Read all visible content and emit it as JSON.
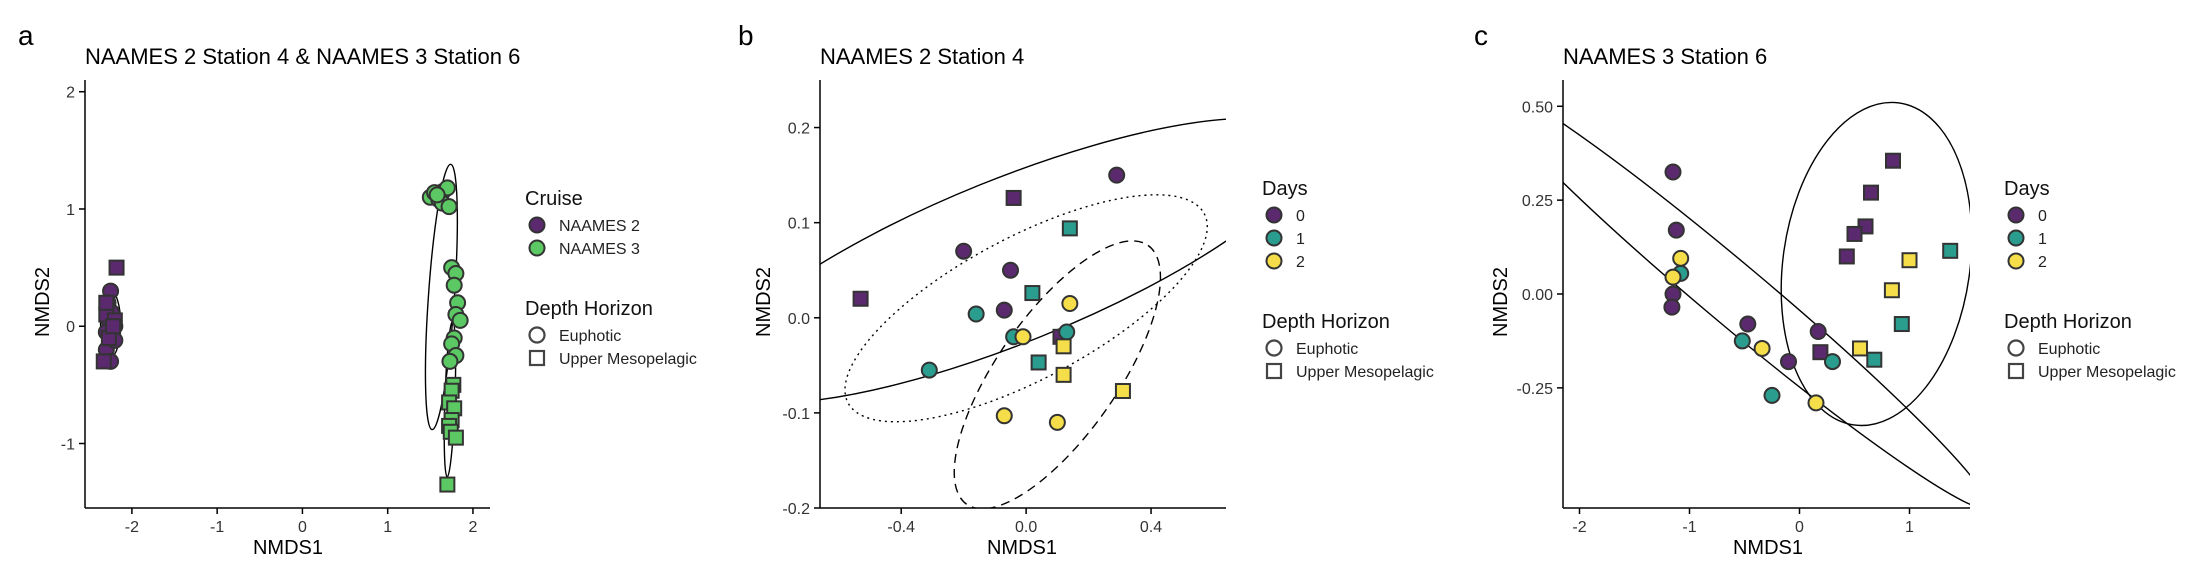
{
  "chart_data": [
    {
      "type": "scatter",
      "panel_label": "a",
      "title": "NAAMES 2 Station 4 & NAAMES 3 Station 6",
      "xlabel": "NMDS1",
      "ylabel": "NMDS2",
      "xlim": [
        -2.55,
        2.2
      ],
      "ylim": [
        -1.55,
        2.1
      ],
      "xticks": [
        -2,
        -1,
        0,
        1,
        2
      ],
      "xtick_labels": [
        "-2",
        "-1",
        "0",
        "1",
        "2"
      ],
      "yticks": [
        -1,
        0,
        1,
        2
      ],
      "ytick_labels": [
        "-1",
        "0",
        "1",
        "2"
      ],
      "grid": false,
      "legend_position": "right",
      "legends": [
        {
          "title": "Cruise",
          "kind": "color",
          "entries": [
            {
              "label": "NAAMES 2",
              "color": "#5B2A6E"
            },
            {
              "label": "NAAMES 3",
              "color": "#5CC863"
            }
          ]
        },
        {
          "title": "Depth Horizon",
          "kind": "shape",
          "entries": [
            {
              "label": "Euphotic",
              "shape": "circle"
            },
            {
              "label": "Upper Mesopelagic",
              "shape": "square"
            }
          ]
        }
      ],
      "ellipses": [
        {
          "cx": 1.63,
          "cy": 0.25,
          "rx": 1.33,
          "ry": 0.13,
          "angle": 86,
          "style": "solid"
        },
        {
          "cx": 1.73,
          "cy": -0.62,
          "rx": 0.78,
          "ry": 0.05,
          "angle": 88,
          "style": "solid"
        },
        {
          "cx": -2.25,
          "cy": 0.02,
          "rx": 0.33,
          "ry": 0.1,
          "angle": 90,
          "style": "solid"
        }
      ],
      "series": [
        {
          "name": "NAAMES 2",
          "color": "#5B2A6E",
          "points": [
            {
              "x": -2.27,
              "y": 0.05,
              "shape": "circle"
            },
            {
              "x": -2.25,
              "y": 0.3,
              "shape": "circle"
            },
            {
              "x": -2.3,
              "y": -0.05,
              "shape": "circle"
            },
            {
              "x": -2.22,
              "y": -0.1,
              "shape": "circle"
            },
            {
              "x": -2.2,
              "y": 0.0,
              "shape": "circle"
            },
            {
              "x": -2.3,
              "y": -0.2,
              "shape": "circle"
            },
            {
              "x": -2.25,
              "y": -0.3,
              "shape": "circle"
            },
            {
              "x": -2.28,
              "y": 0.2,
              "shape": "circle"
            },
            {
              "x": -2.2,
              "y": -0.12,
              "shape": "circle"
            },
            {
              "x": -2.24,
              "y": 0.12,
              "shape": "circle"
            },
            {
              "x": -2.18,
              "y": 0.5,
              "shape": "square"
            },
            {
              "x": -2.3,
              "y": 0.1,
              "shape": "square"
            },
            {
              "x": -2.27,
              "y": -0.1,
              "shape": "square"
            },
            {
              "x": -2.33,
              "y": -0.3,
              "shape": "square"
            },
            {
              "x": -2.2,
              "y": 0.05,
              "shape": "square"
            },
            {
              "x": -2.22,
              "y": 0.0,
              "shape": "square"
            },
            {
              "x": -2.3,
              "y": 0.2,
              "shape": "square"
            }
          ]
        },
        {
          "name": "NAAMES 3",
          "color": "#5CC863",
          "points": [
            {
              "x": 1.5,
              "y": 1.1,
              "shape": "circle"
            },
            {
              "x": 1.55,
              "y": 1.14,
              "shape": "circle"
            },
            {
              "x": 1.6,
              "y": 1.08,
              "shape": "circle"
            },
            {
              "x": 1.65,
              "y": 1.15,
              "shape": "circle"
            },
            {
              "x": 1.7,
              "y": 1.18,
              "shape": "circle"
            },
            {
              "x": 1.64,
              "y": 1.05,
              "shape": "circle"
            },
            {
              "x": 1.72,
              "y": 1.02,
              "shape": "circle"
            },
            {
              "x": 1.58,
              "y": 1.12,
              "shape": "circle"
            },
            {
              "x": 1.75,
              "y": 0.5,
              "shape": "circle"
            },
            {
              "x": 1.8,
              "y": 0.45,
              "shape": "circle"
            },
            {
              "x": 1.78,
              "y": 0.35,
              "shape": "circle"
            },
            {
              "x": 1.82,
              "y": 0.2,
              "shape": "circle"
            },
            {
              "x": 1.8,
              "y": 0.1,
              "shape": "circle"
            },
            {
              "x": 1.85,
              "y": 0.05,
              "shape": "circle"
            },
            {
              "x": 1.78,
              "y": -0.1,
              "shape": "circle"
            },
            {
              "x": 1.75,
              "y": -0.15,
              "shape": "circle"
            },
            {
              "x": 1.8,
              "y": -0.25,
              "shape": "circle"
            },
            {
              "x": 1.73,
              "y": -0.3,
              "shape": "circle"
            },
            {
              "x": 1.77,
              "y": -0.5,
              "shape": "square"
            },
            {
              "x": 1.75,
              "y": -0.55,
              "shape": "square"
            },
            {
              "x": 1.72,
              "y": -0.65,
              "shape": "square"
            },
            {
              "x": 1.78,
              "y": -0.7,
              "shape": "square"
            },
            {
              "x": 1.75,
              "y": -0.8,
              "shape": "square"
            },
            {
              "x": 1.72,
              "y": -0.85,
              "shape": "square"
            },
            {
              "x": 1.74,
              "y": -0.9,
              "shape": "square"
            },
            {
              "x": 1.8,
              "y": -0.95,
              "shape": "square"
            },
            {
              "x": 1.7,
              "y": -1.35,
              "shape": "square"
            }
          ]
        }
      ]
    },
    {
      "type": "scatter",
      "panel_label": "b",
      "title": "NAAMES 2 Station 4",
      "xlabel": "NMDS1",
      "ylabel": "NMDS2",
      "xlim": [
        -0.66,
        0.64
      ],
      "ylim": [
        -0.2,
        0.25
      ],
      "xticks": [
        -0.4,
        0.0,
        0.4
      ],
      "xtick_labels": [
        "-0.4",
        "0.0",
        "0.4"
      ],
      "yticks": [
        -0.2,
        -0.1,
        0.0,
        0.1,
        0.2
      ],
      "ytick_labels": [
        "-0.2",
        "-0.1",
        "0.0",
        "0.1",
        "0.2"
      ],
      "grid": false,
      "legend_position": "right",
      "legends": [
        {
          "title": "Days",
          "kind": "color",
          "entries": [
            {
              "label": "0",
              "color": "#5B2A6E"
            },
            {
              "label": "1",
              "color": "#2A9D8F"
            },
            {
              "label": "2",
              "color": "#F5DE4A"
            }
          ]
        },
        {
          "title": "Depth Horizon",
          "kind": "shape",
          "entries": [
            {
              "label": "Euphotic",
              "shape": "circle"
            },
            {
              "label": "Upper Mesopelagic",
              "shape": "square"
            }
          ]
        }
      ],
      "ellipses": [
        {
          "cx": -0.05,
          "cy": 0.06,
          "rx": 0.59,
          "ry": 0.15,
          "angle": 22,
          "style": "solid"
        },
        {
          "cx": 0.0,
          "cy": 0.01,
          "rx": 0.37,
          "ry": 0.13,
          "angle": 28,
          "style": "dotted"
        },
        {
          "cx": 0.1,
          "cy": -0.06,
          "rx": 0.29,
          "ry": 0.11,
          "angle": 55,
          "style": "dashed"
        }
      ],
      "series": [
        {
          "name": "0",
          "color": "#5B2A6E",
          "points": [
            {
              "x": 0.29,
              "y": 0.15,
              "shape": "circle"
            },
            {
              "x": -0.2,
              "y": 0.07,
              "shape": "circle"
            },
            {
              "x": -0.05,
              "y": 0.05,
              "shape": "circle"
            },
            {
              "x": -0.07,
              "y": 0.008,
              "shape": "circle"
            },
            {
              "x": -0.53,
              "y": 0.02,
              "shape": "square"
            },
            {
              "x": -0.04,
              "y": 0.126,
              "shape": "square"
            },
            {
              "x": 0.11,
              "y": -0.02,
              "shape": "square"
            }
          ]
        },
        {
          "name": "1",
          "color": "#2A9D8F",
          "points": [
            {
              "x": -0.31,
              "y": -0.055,
              "shape": "circle"
            },
            {
              "x": -0.16,
              "y": 0.004,
              "shape": "circle"
            },
            {
              "x": -0.04,
              "y": -0.02,
              "shape": "circle"
            },
            {
              "x": 0.13,
              "y": -0.015,
              "shape": "circle"
            },
            {
              "x": 0.14,
              "y": 0.094,
              "shape": "square"
            },
            {
              "x": 0.02,
              "y": 0.026,
              "shape": "square"
            },
            {
              "x": 0.04,
              "y": -0.047,
              "shape": "square"
            }
          ]
        },
        {
          "name": "2",
          "color": "#F5DE4A",
          "points": [
            {
              "x": 0.14,
              "y": 0.015,
              "shape": "circle"
            },
            {
              "x": -0.01,
              "y": -0.02,
              "shape": "circle"
            },
            {
              "x": -0.07,
              "y": -0.103,
              "shape": "circle"
            },
            {
              "x": 0.1,
              "y": -0.11,
              "shape": "circle"
            },
            {
              "x": 0.12,
              "y": -0.03,
              "shape": "square"
            },
            {
              "x": 0.12,
              "y": -0.06,
              "shape": "square"
            },
            {
              "x": 0.31,
              "y": -0.077,
              "shape": "square"
            }
          ]
        }
      ]
    },
    {
      "type": "scatter",
      "panel_label": "c",
      "title": "NAAMES 3 Station 6",
      "xlabel": "NMDS1",
      "ylabel": "NMDS2",
      "xlim": [
        -2.15,
        1.55
      ],
      "ylim": [
        -0.57,
        0.57
      ],
      "xticks": [
        -2,
        -1,
        0,
        1
      ],
      "xtick_labels": [
        "-2",
        "-1",
        "0",
        "1"
      ],
      "yticks": [
        -0.25,
        0.0,
        0.25,
        0.5
      ],
      "ytick_labels": [
        "-0.25",
        "0.00",
        "0.25",
        "0.50"
      ],
      "grid": false,
      "legend_position": "right",
      "legends": [
        {
          "title": "Days",
          "kind": "color",
          "entries": [
            {
              "label": "0",
              "color": "#5B2A6E"
            },
            {
              "label": "1",
              "color": "#2A9D8F"
            },
            {
              "label": "2",
              "color": "#F5DE4A"
            }
          ]
        },
        {
          "title": "Depth Horizon",
          "kind": "shape",
          "entries": [
            {
              "label": "Euphotic",
              "shape": "circle"
            },
            {
              "label": "Upper Mesopelagic",
              "shape": "square"
            }
          ]
        }
      ],
      "ellipses": [
        {
          "cx": -0.6,
          "cy": 0.0,
          "rx": 1.63,
          "ry": 0.15,
          "angle": -40,
          "style": "solid"
        },
        {
          "cx": 0.7,
          "cy": 0.08,
          "rx": 0.46,
          "ry": 0.8,
          "angle": -8,
          "style": "solid"
        }
      ],
      "series": [
        {
          "name": "0",
          "color": "#5B2A6E",
          "points": [
            {
              "x": -1.15,
              "y": 0.325,
              "shape": "circle"
            },
            {
              "x": -1.12,
              "y": 0.17,
              "shape": "circle"
            },
            {
              "x": -1.15,
              "y": 0.0,
              "shape": "circle"
            },
            {
              "x": -1.16,
              "y": -0.035,
              "shape": "circle"
            },
            {
              "x": -0.47,
              "y": -0.08,
              "shape": "circle"
            },
            {
              "x": -0.1,
              "y": -0.18,
              "shape": "circle"
            },
            {
              "x": 0.17,
              "y": -0.1,
              "shape": "circle"
            },
            {
              "x": 0.85,
              "y": 0.355,
              "shape": "square"
            },
            {
              "x": 0.65,
              "y": 0.27,
              "shape": "square"
            },
            {
              "x": 0.6,
              "y": 0.18,
              "shape": "square"
            },
            {
              "x": 0.5,
              "y": 0.16,
              "shape": "square"
            },
            {
              "x": 0.43,
              "y": 0.1,
              "shape": "square"
            },
            {
              "x": 0.19,
              "y": -0.155,
              "shape": "square"
            }
          ]
        },
        {
          "name": "1",
          "color": "#2A9D8F",
          "points": [
            {
              "x": -1.08,
              "y": 0.055,
              "shape": "circle"
            },
            {
              "x": -0.52,
              "y": -0.125,
              "shape": "circle"
            },
            {
              "x": -0.25,
              "y": -0.27,
              "shape": "circle"
            },
            {
              "x": 0.3,
              "y": -0.18,
              "shape": "circle"
            },
            {
              "x": 1.37,
              "y": 0.115,
              "shape": "square"
            },
            {
              "x": 0.93,
              "y": -0.08,
              "shape": "square"
            },
            {
              "x": 0.68,
              "y": -0.175,
              "shape": "square"
            }
          ]
        },
        {
          "name": "2",
          "color": "#F5DE4A",
          "points": [
            {
              "x": -1.08,
              "y": 0.095,
              "shape": "circle"
            },
            {
              "x": -1.15,
              "y": 0.045,
              "shape": "circle"
            },
            {
              "x": -0.34,
              "y": -0.145,
              "shape": "circle"
            },
            {
              "x": 0.15,
              "y": -0.29,
              "shape": "circle"
            },
            {
              "x": 1.0,
              "y": 0.09,
              "shape": "square"
            },
            {
              "x": 0.84,
              "y": 0.01,
              "shape": "square"
            },
            {
              "x": 0.55,
              "y": -0.145,
              "shape": "square"
            }
          ]
        }
      ]
    }
  ]
}
